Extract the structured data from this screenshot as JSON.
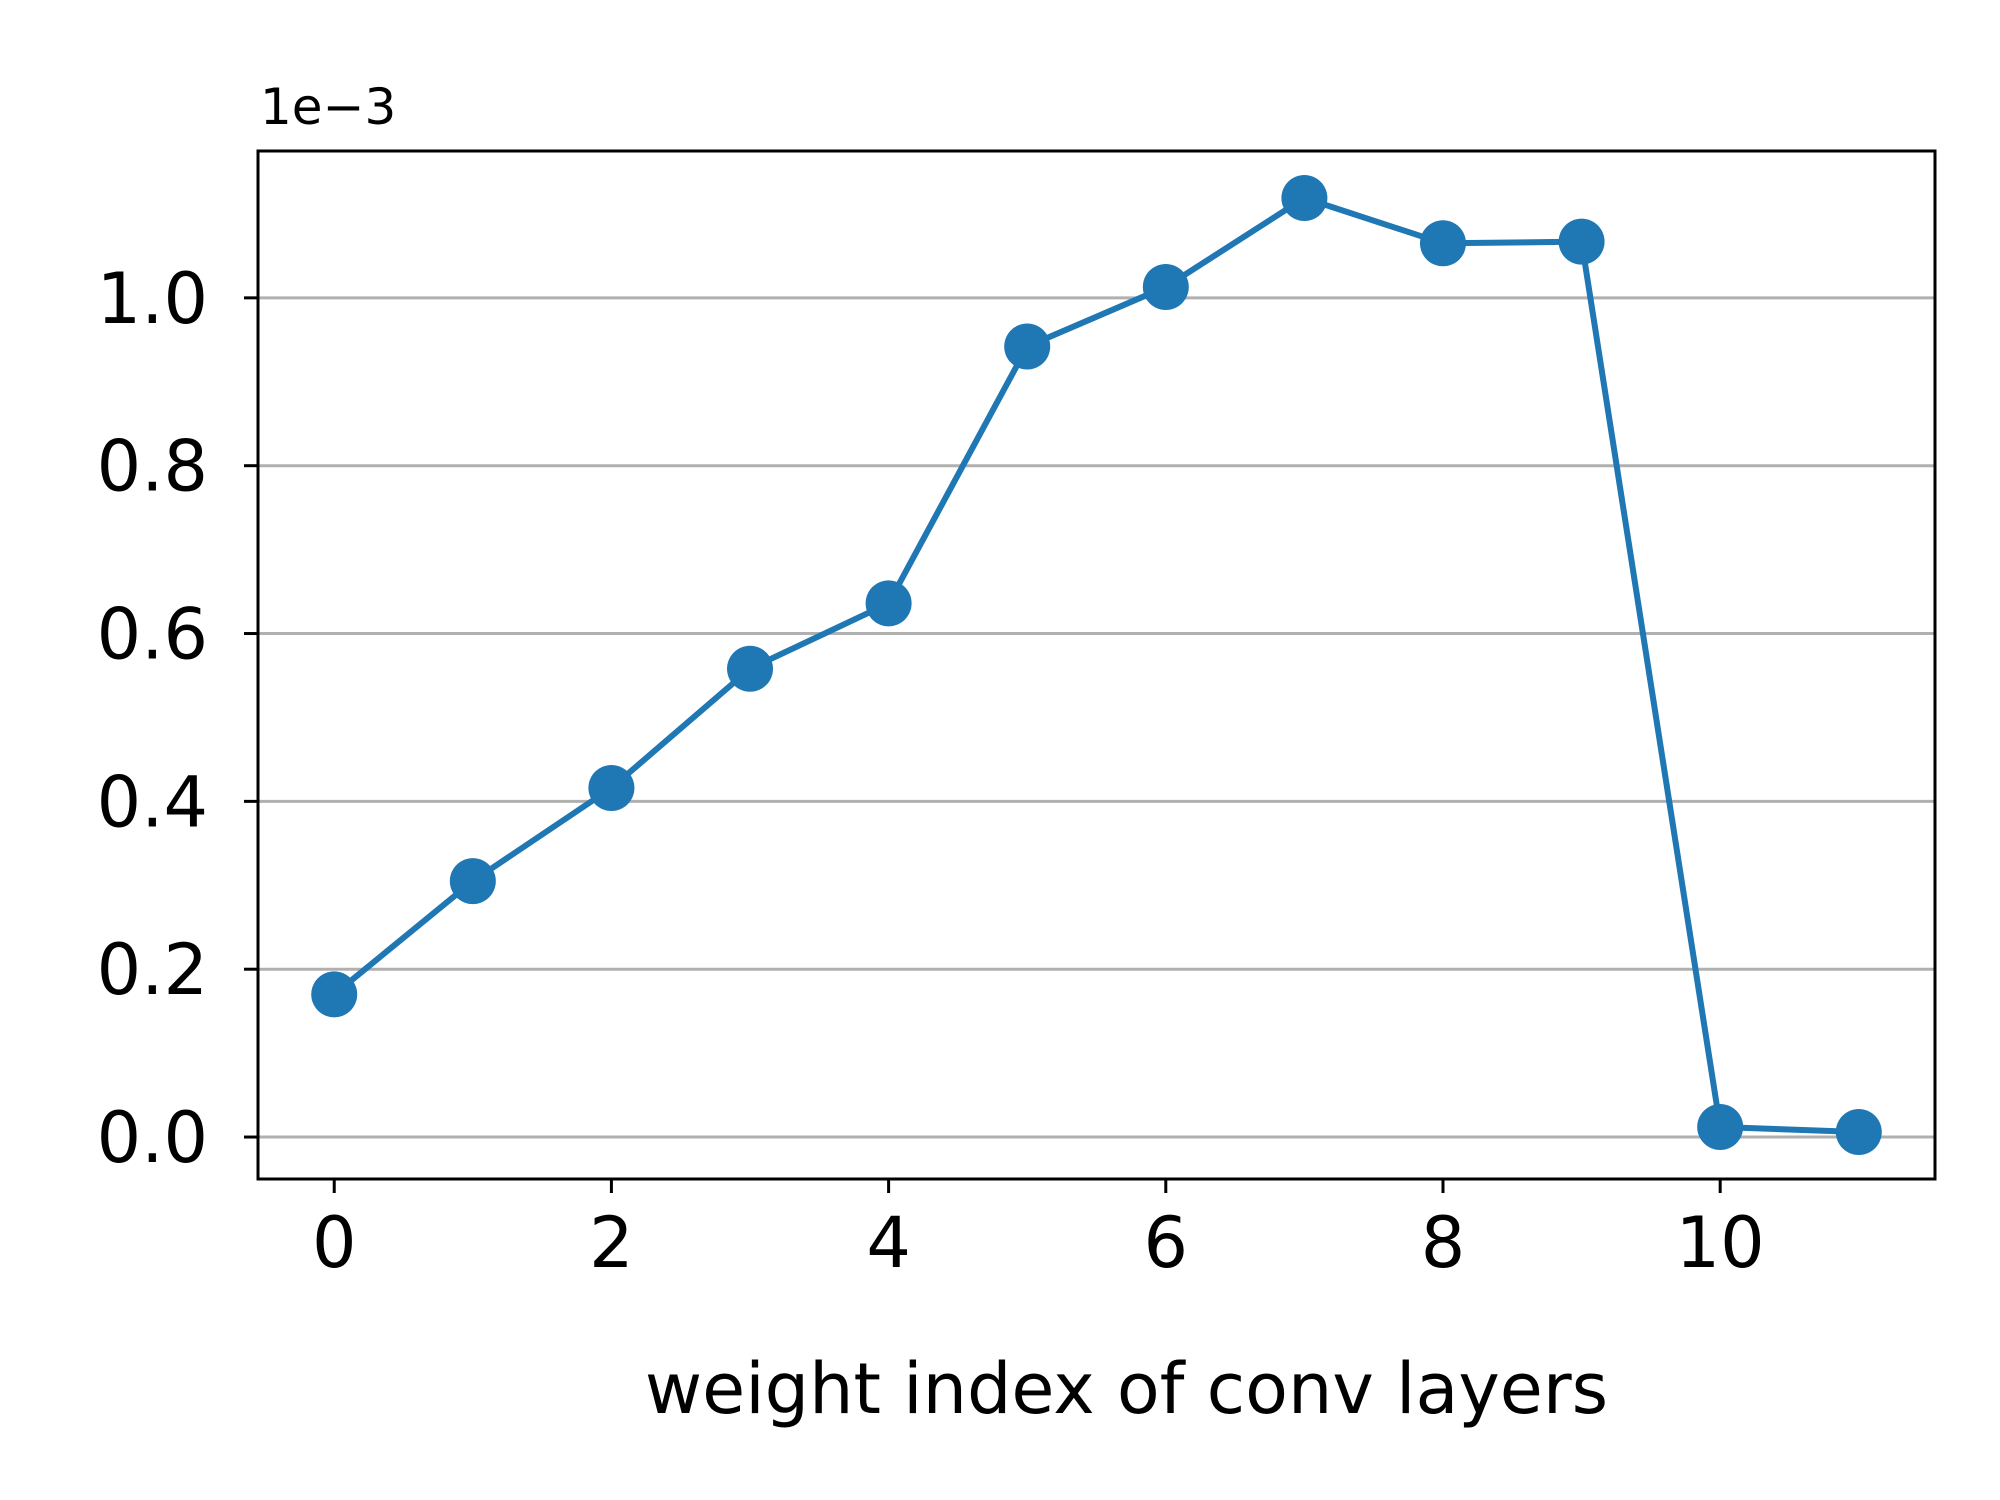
{
  "chart_data": {
    "type": "line",
    "title": "",
    "xlabel": "weight index of conv layers",
    "ylabel": "",
    "scale_label": "1e−3",
    "x": [
      0,
      1,
      2,
      3,
      4,
      5,
      6,
      7,
      8,
      9,
      10,
      11
    ],
    "series": [
      {
        "values": [
          0.17,
          0.305,
          0.416,
          0.558,
          0.636,
          0.942,
          1.013,
          1.119,
          1.065,
          1.067,
          0.012,
          0.006
        ],
        "color": "#1f77b4",
        "marker": "circle"
      }
    ],
    "xlim": [
      -0.55,
      11.55
    ],
    "ylim": [
      -0.05,
      1.175
    ],
    "xticks": [
      {
        "value": 0,
        "label": "0"
      },
      {
        "value": 2,
        "label": "2"
      },
      {
        "value": 4,
        "label": "4"
      },
      {
        "value": 6,
        "label": "6"
      },
      {
        "value": 8,
        "label": "8"
      },
      {
        "value": 10,
        "label": "10"
      }
    ],
    "yticks": [
      {
        "value": 0.0,
        "label": "0.0"
      },
      {
        "value": 0.2,
        "label": "0.2"
      },
      {
        "value": 0.4,
        "label": "0.4"
      },
      {
        "value": 0.6,
        "label": "0.6"
      },
      {
        "value": 0.8,
        "label": "0.8"
      },
      {
        "value": 1.0,
        "label": "1.0"
      }
    ],
    "grid": {
      "y": true,
      "x": false,
      "color": "#b0b0b0"
    },
    "legend": "none"
  }
}
